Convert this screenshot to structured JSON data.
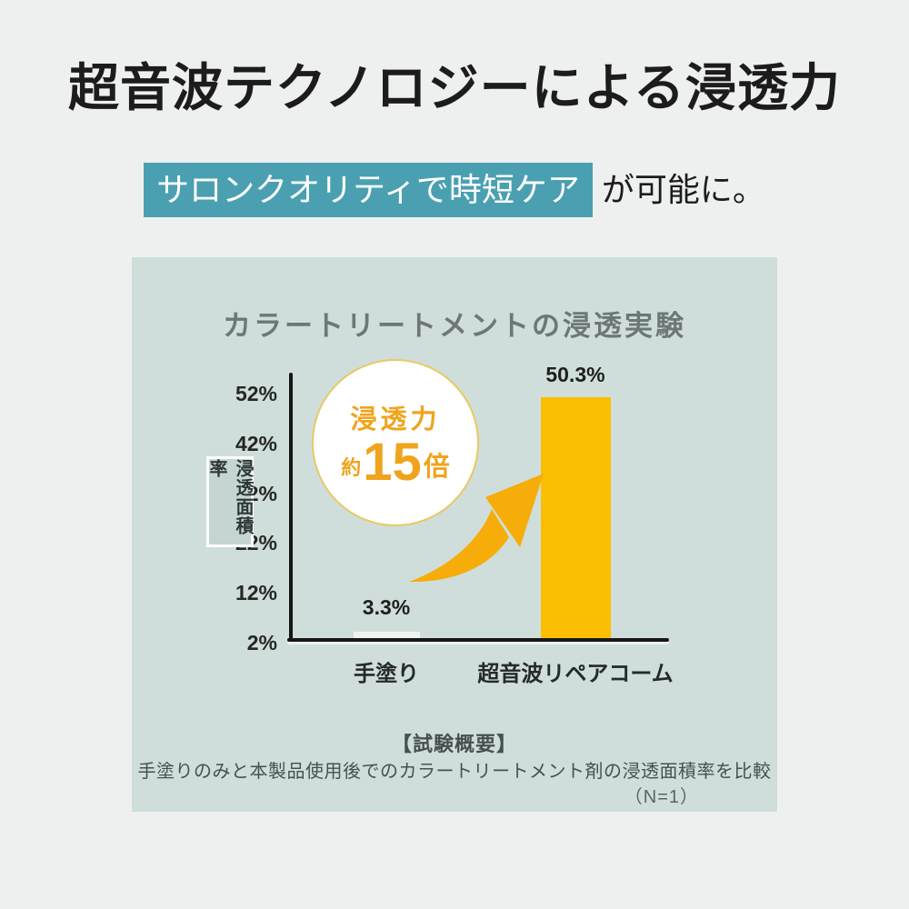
{
  "page": {
    "title": "超音波テクノロジーによる浸透力",
    "subtitle_highlight": "サロンクオリティで時短ケア",
    "subtitle_rest": "が可能に。"
  },
  "colors": {
    "background": "#eef0ef",
    "panel_background": "#cfdeda",
    "highlight_teal": "#4aa0b1",
    "bar_orange": "#fcbe00",
    "hand_bar_white": "#eef2f0",
    "arrow_orange": "#f6ad0a",
    "badge_orange_text": "#f0a41d",
    "badge_border_gold": "#e8c964",
    "axis_black": "#161616",
    "chart_title_gray": "#6e7778"
  },
  "chart": {
    "title": "カラートリートメントの浸透実験",
    "y_axis_label": "浸透面積率",
    "badge": {
      "line1": "浸透力",
      "prefix": "約",
      "number": "15",
      "suffix": "倍"
    },
    "footer": {
      "heading": "【試験概要】",
      "description": "手塗りのみと本製品使用後でのカラートリートメント剤の浸透面積率を比較",
      "note": "（N=1）"
    }
  },
  "chart_data": {
    "type": "bar",
    "title": "カラートリートメントの浸透実験",
    "categories": [
      "手塗り",
      "超音波リペアコーム"
    ],
    "values": [
      3.3,
      50.3
    ],
    "value_labels": [
      "3.3%",
      "50.3%"
    ],
    "ylabel": "浸透面積率",
    "yticks": [
      "52%",
      "42%",
      "32%",
      "22%",
      "12%",
      "2%"
    ],
    "ytick_values": [
      52,
      42,
      32,
      22,
      12,
      2
    ],
    "ylim": [
      2,
      56
    ],
    "grid": false,
    "legend": false,
    "bar_colors": [
      "#eef2f0",
      "#fcbe00"
    ],
    "annotation": "浸透力 約15倍"
  }
}
